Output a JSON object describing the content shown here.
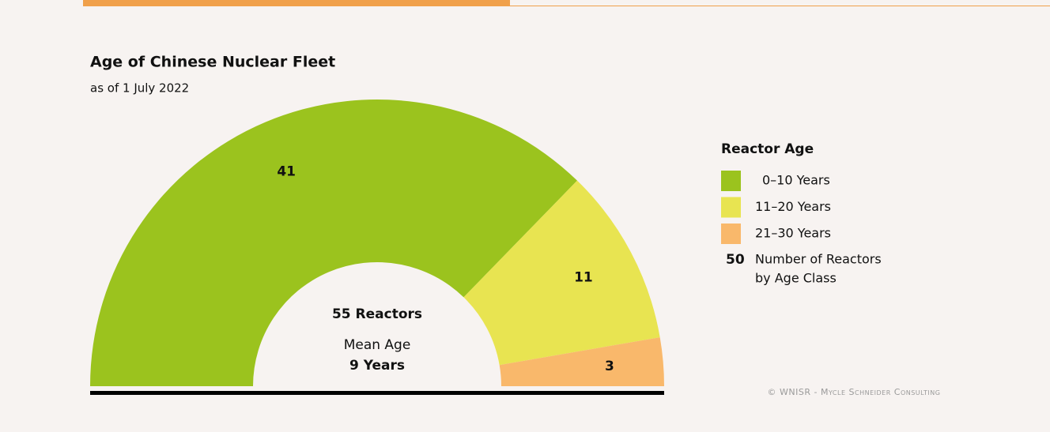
{
  "chart_data": {
    "type": "pie",
    "title": "Age of Chinese Nuclear Fleet",
    "subtitle": "as of 1 July 2022",
    "categories": [
      "0–10 Years",
      "11–20 Years",
      "21–30 Years"
    ],
    "values": [
      41,
      11,
      3
    ],
    "colors": [
      "#9bc31e",
      "#e8e451",
      "#f9b86b"
    ],
    "center_text": [
      "55 Reactors",
      "Mean Age",
      "9 Years"
    ],
    "legend_title": "Reactor Age",
    "legend_example": {
      "value": "50",
      "text": [
        "Number of Reactors",
        "by Age Class"
      ]
    },
    "credit": "© WNISR - Mycle Schneider Consulting"
  }
}
